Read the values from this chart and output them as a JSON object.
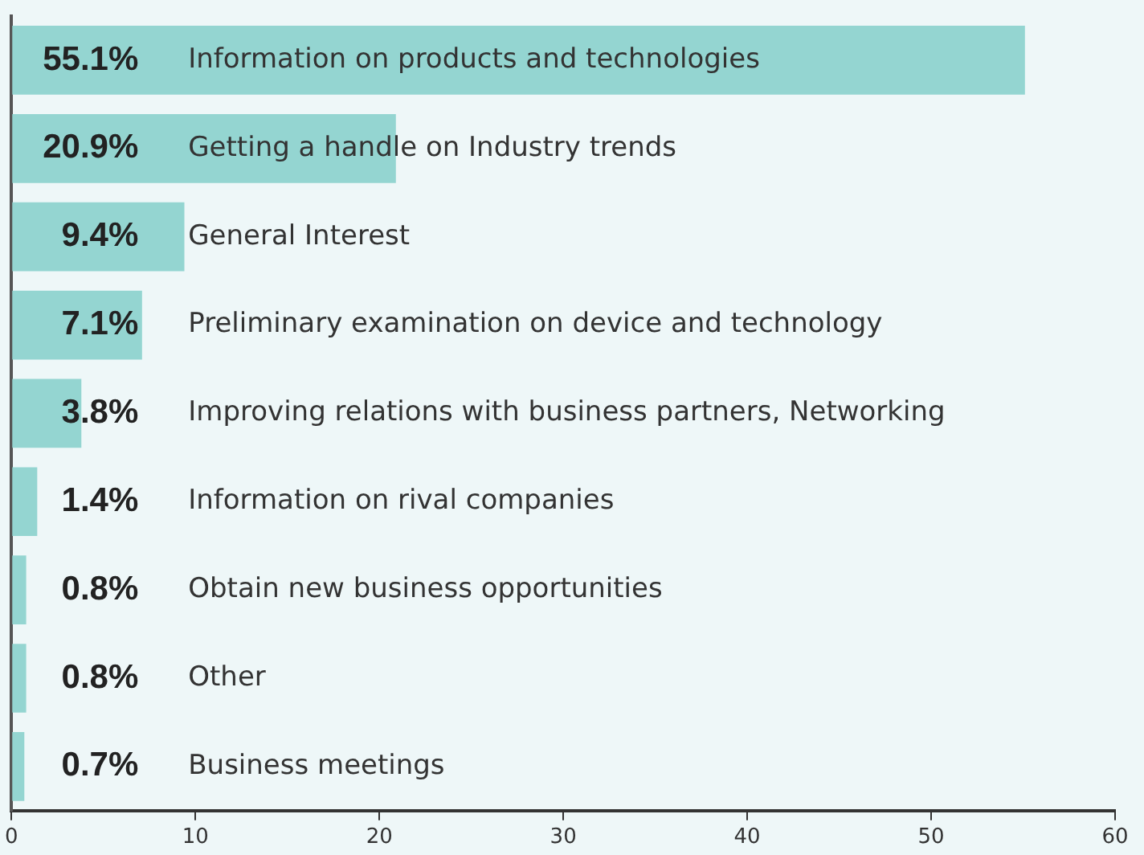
{
  "chart_data": {
    "type": "bar",
    "orientation": "horizontal",
    "categories": [
      "Information on products and technologies",
      "Getting a handle on Industry trends",
      "General Interest",
      "Preliminary examination on device and technology",
      "Improving relations with business partners, Networking",
      "Information on rival companies",
      "Obtain new business opportunities",
      "Other",
      "Business meetings"
    ],
    "values": [
      55.1,
      20.9,
      9.4,
      7.1,
      3.8,
      1.4,
      0.8,
      0.8,
      0.7
    ],
    "value_labels": [
      "55.1%",
      "20.9%",
      "9.4%",
      "7.1%",
      "3.8%",
      "1.4%",
      "0.8%",
      "0.8%",
      "0.7%"
    ],
    "color": "#94d5d1",
    "xlim": [
      0,
      60
    ],
    "xticks": [
      0,
      10,
      20,
      30,
      40,
      50,
      60
    ],
    "grid": false,
    "legend": false
  }
}
